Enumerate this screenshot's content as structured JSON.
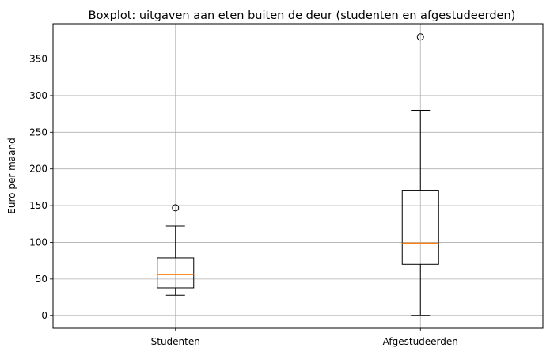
{
  "chart_data": {
    "type": "boxplot",
    "title": "Boxplot: uitgaven aan eten buiten de deur (studenten en afgestudeerden)",
    "xlabel": "",
    "ylabel": "Euro per maand",
    "ylim": [
      -17,
      398
    ],
    "yticks": [
      0,
      50,
      100,
      150,
      200,
      250,
      300,
      350
    ],
    "grid": true,
    "categories": [
      "Studenten",
      "Afgestudeerden"
    ],
    "boxes": [
      {
        "category": "Studenten",
        "whisker_low": 28,
        "q1": 38,
        "median": 56,
        "q3": 79,
        "whisker_high": 122,
        "outliers": [
          147
        ]
      },
      {
        "category": "Afgestudeerden",
        "whisker_low": 0,
        "q1": 70,
        "median": 99,
        "q3": 171,
        "whisker_high": 280,
        "outliers": [
          380
        ]
      }
    ],
    "colors": {
      "box": "#000000",
      "median": "#ff7f0e",
      "grid": "#b0b0b0"
    }
  }
}
